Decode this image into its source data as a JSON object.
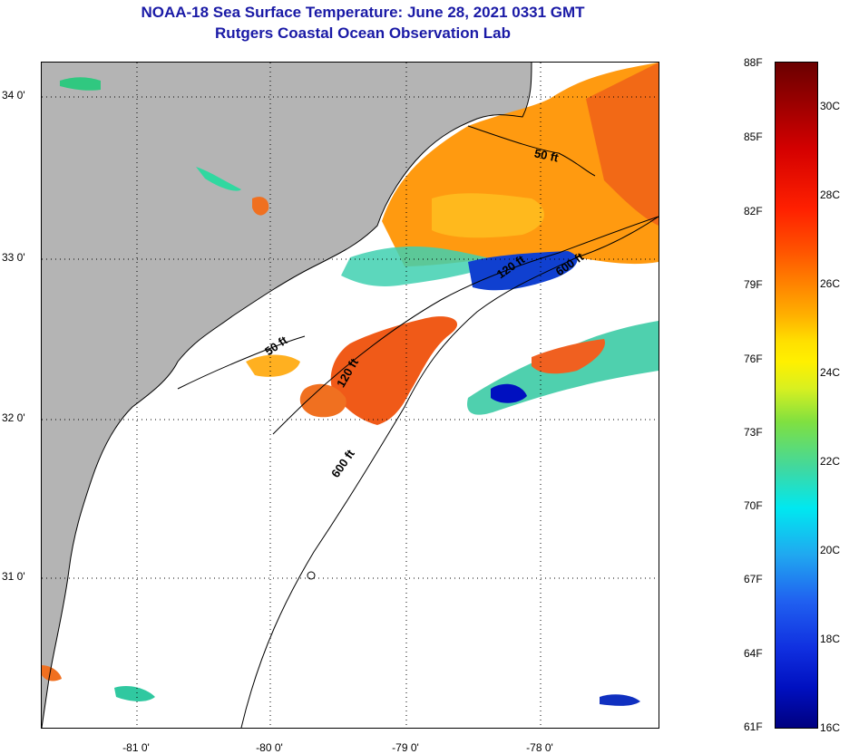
{
  "titles": {
    "line1": "NOAA-18 Sea Surface Temperature:  June 28, 2021 0331 GMT",
    "line2": "Rutgers Coastal Ocean Observation Lab"
  },
  "latitude_labels": [
    "34 0'",
    "33 0'",
    "32 0'",
    "31 0'"
  ],
  "longitude_labels": [
    "-81 0'",
    "-80 0'",
    "-79 0'",
    "-78 0'"
  ],
  "contour_labels": {
    "north_50": "50 ft",
    "south_50": "50 ft",
    "north_120": "120 ft",
    "south_120": "120 ft",
    "north_600": "600 ft",
    "south_600": "600 ft"
  },
  "colorbar": {
    "fahrenheit": [
      "88F",
      "85F",
      "82F",
      "79F",
      "76F",
      "73F",
      "70F",
      "67F",
      "64F",
      "61F"
    ],
    "celsius": [
      "30C",
      "28C",
      "26C",
      "24C",
      "22C",
      "20C",
      "18C",
      "16C"
    ]
  },
  "colors": {
    "land": "#b4b4b4",
    "title": "#1a1aa6",
    "warm": "#ff9a10",
    "hot": "#e83a10",
    "cool": "#30d8c0",
    "cold": "#0010c0"
  }
}
